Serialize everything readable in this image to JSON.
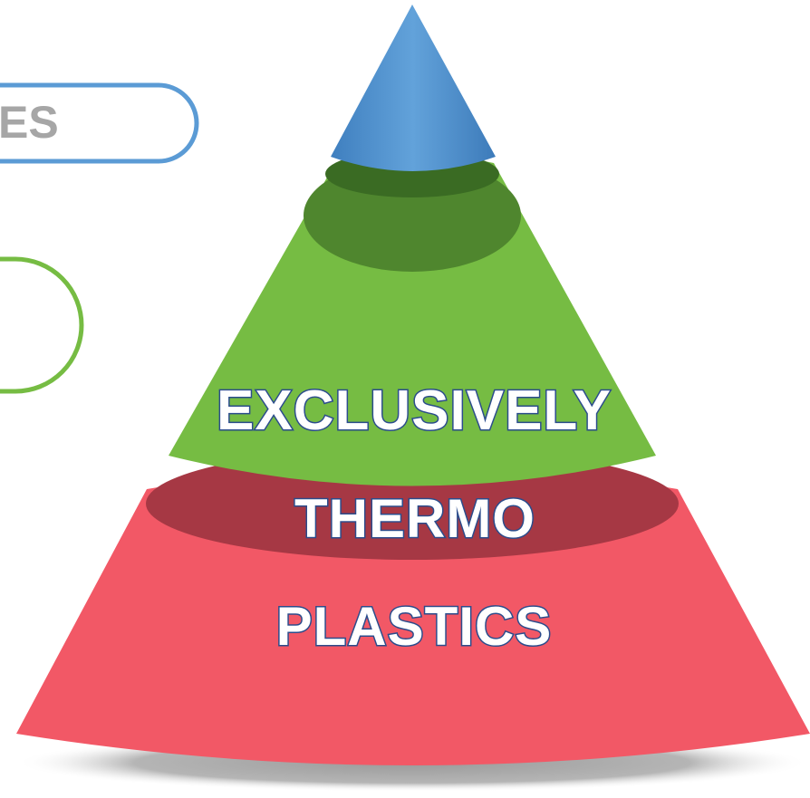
{
  "callouts": {
    "top_fragment": "ES",
    "middle_fragment": ""
  },
  "pyramid": {
    "tiers": [
      {
        "name": "top",
        "color": "#5b9bd5",
        "text": ""
      },
      {
        "name": "middle",
        "color": "#76bc43",
        "text": "EXCLUSIVELY"
      },
      {
        "name": "bottom",
        "color": "#f25866",
        "text_lines": [
          "THERMO",
          "PLASTICS"
        ]
      }
    ]
  },
  "colors": {
    "blue": "#5b9bd5",
    "green": "#76bc43",
    "red": "#f25866",
    "label_outline": "#2b4c8c",
    "callout_text": "#a6a6a6"
  }
}
